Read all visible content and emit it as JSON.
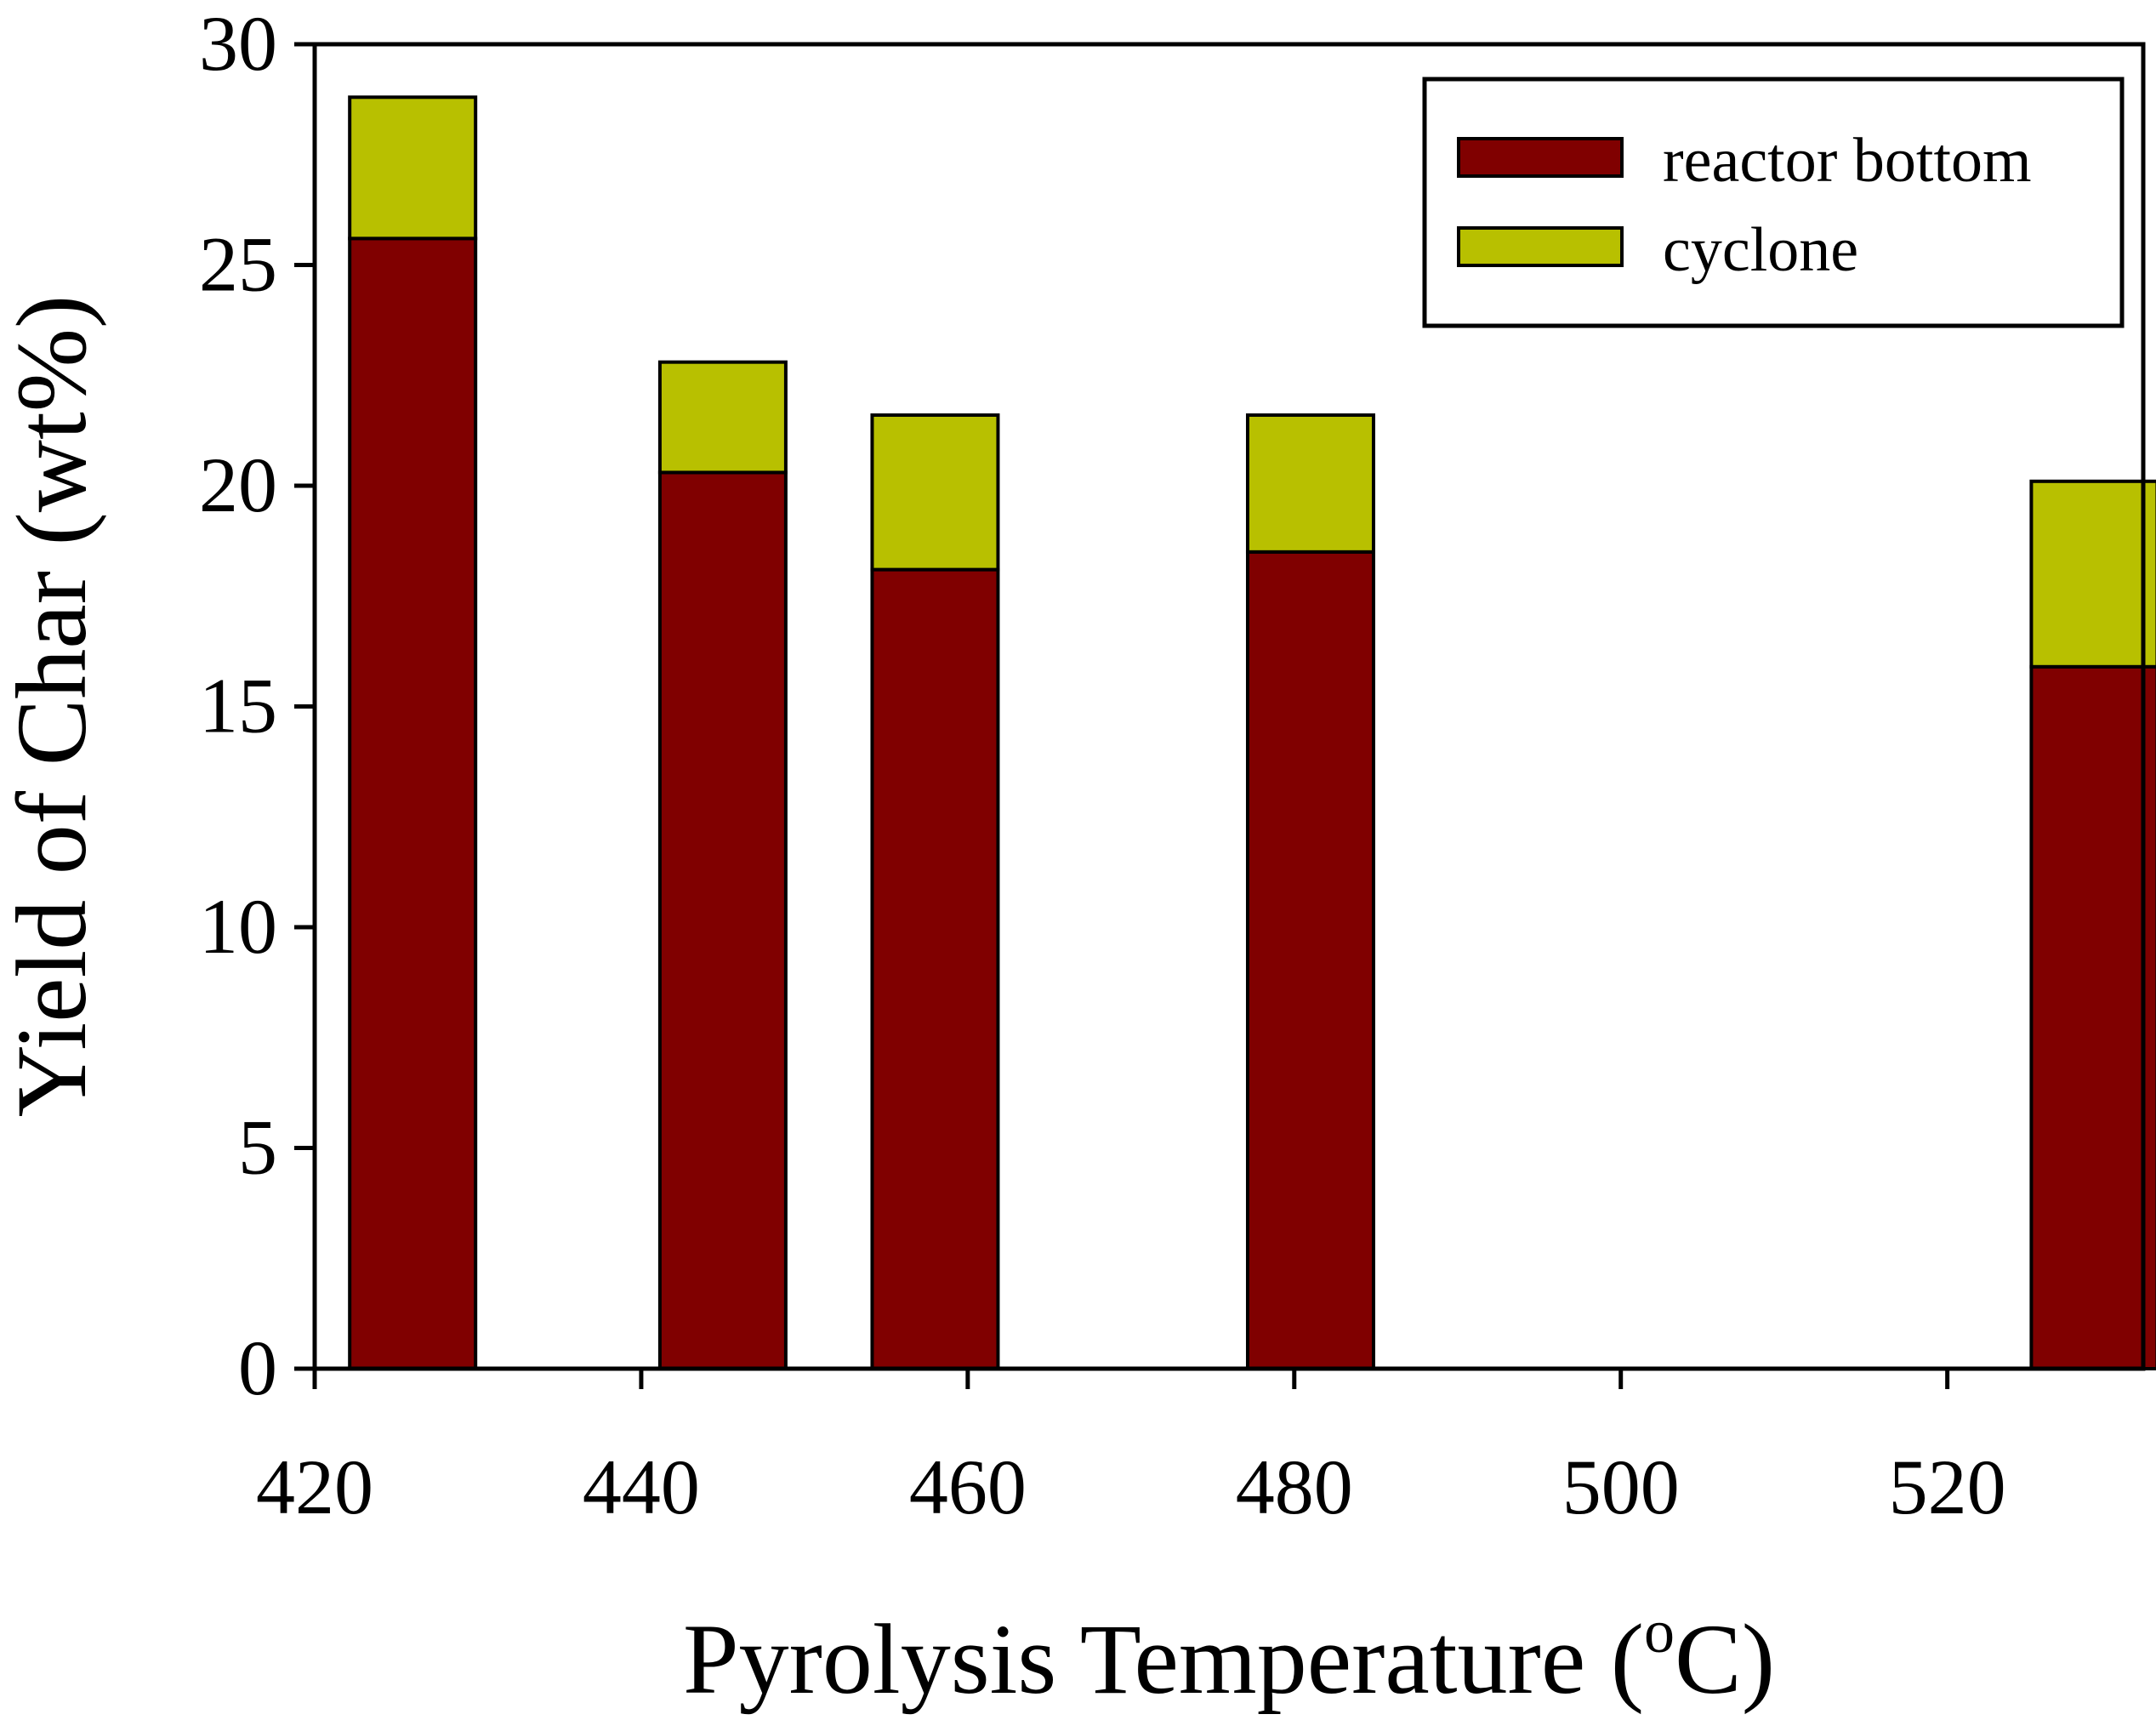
{
  "chart_data": {
    "type": "bar",
    "stacked": true,
    "x_type": "numeric",
    "x": [
      426,
      445,
      458,
      481,
      529
    ],
    "series": [
      {
        "name": "reactor bottom",
        "values": [
          25.6,
          20.3,
          18.1,
          18.5,
          15.9
        ],
        "color": "#800000"
      },
      {
        "name": "cyclone",
        "values": [
          3.2,
          2.5,
          3.5,
          3.1,
          4.2
        ],
        "color": "#b8c000"
      }
    ],
    "xlabel_main": "Pyrolysis Temperature (",
    "xlabel_sup": "o",
    "xlabel_end": "C)",
    "ylabel": "Yield of Char (wt%)",
    "xlim": [
      420,
      532
    ],
    "ylim": [
      0,
      30
    ],
    "xticks": [
      420,
      440,
      460,
      480,
      500,
      520
    ],
    "yticks": [
      0,
      5,
      10,
      15,
      20,
      25,
      30
    ],
    "xticks_labels": [
      "420",
      "440",
      "460",
      "480",
      "500",
      "520"
    ],
    "yticks_labels": [
      "0",
      "5",
      "10",
      "15",
      "20",
      "25",
      "30"
    ],
    "legend_position": "top-right",
    "grid": false
  }
}
